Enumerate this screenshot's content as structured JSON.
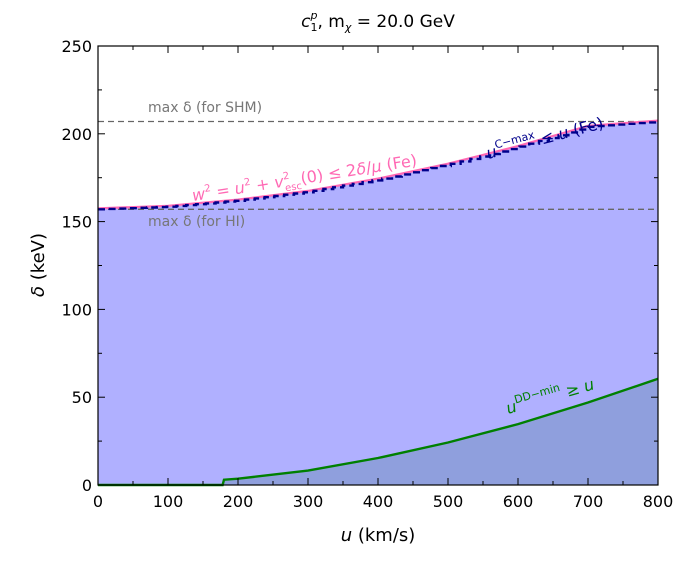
{
  "chart_data": {
    "type": "area",
    "title_coupling": "c",
    "title_coupling_sup": "p",
    "title_coupling_sub": "1",
    "title_mass": ", m",
    "title_mass_sub": "χ",
    "title_value": " = 20.0 GeV",
    "xlabel_var": "u",
    "xlabel_unit": " (km/s)",
    "ylabel_var": "δ",
    "ylabel_unit": " (keV)",
    "xlim": [
      0,
      800
    ],
    "ylim": [
      0,
      250
    ],
    "xticks": [
      0,
      100,
      200,
      300,
      400,
      500,
      600,
      700,
      800
    ],
    "yticks": [
      0,
      50,
      100,
      150,
      200,
      250
    ],
    "grid": false,
    "hlines": [
      {
        "name": "max δ (for SHM)",
        "y": 207
      },
      {
        "name": "max δ (for HI)",
        "y": 157
      }
    ],
    "annotations": {
      "shm_label": "max δ (for SHM)",
      "hi_label": "max δ (for HI)",
      "pink_label": "w² = u² + v²esc(0) ≤ 2δ/μ (Fe)",
      "navy_label": "uC−max ≤ u (Fe)",
      "green_label": "uDD−min ≥ u"
    },
    "series": [
      {
        "name": "w² = u² + v²esc(0) ≤ 2δ/μ (Fe)",
        "color": "#ff69b4",
        "x": [
          0,
          100,
          200,
          300,
          400,
          500,
          600,
          700,
          800
        ],
        "y": [
          157.5,
          159.0,
          162.5,
          167.5,
          174.5,
          183.0,
          193.0,
          204.5,
          207.5
        ]
      },
      {
        "name": "uC−max ≤ u (Fe)",
        "color": "#00008b",
        "x": [
          0,
          100,
          200,
          300,
          400,
          500,
          600,
          700,
          800
        ],
        "y": [
          157,
          158.5,
          162,
          167,
          174,
          182.5,
          192.5,
          204,
          207
        ]
      },
      {
        "name": "uDD−min ≥ u",
        "color": "#008000",
        "x": [
          0,
          100,
          178,
          180,
          200,
          300,
          400,
          500,
          600,
          700,
          800
        ],
        "y": [
          0,
          0,
          0,
          3,
          3.6,
          8.2,
          15.4,
          24.2,
          34.7,
          47,
          60.5
        ]
      }
    ],
    "colors": {
      "allowed_fill": "#b0b0ff",
      "dd_fill": "#8f9fdd",
      "dashed": "#666666",
      "pink": "#ff69b4",
      "navy": "#00008b",
      "green": "#008000",
      "label_gray": "#777777"
    }
  }
}
